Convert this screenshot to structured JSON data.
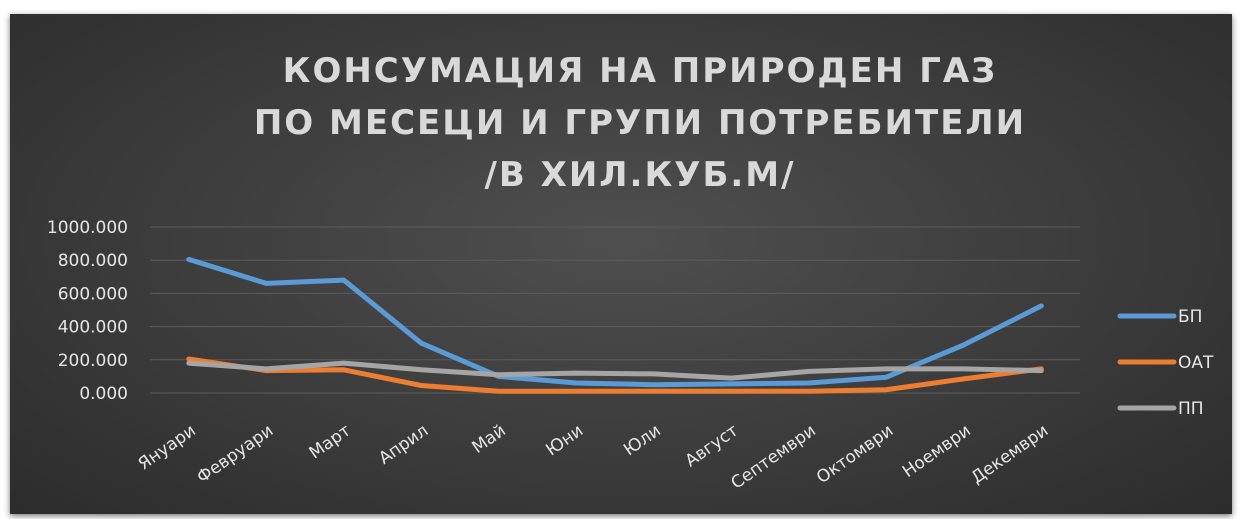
{
  "chart_data": {
    "type": "line",
    "title_lines": [
      "КОНСУМАЦИЯ НА ПРИРОДЕН ГАЗ",
      "ПО МЕСЕЦИ И ГРУПИ ПОТРЕБИТЕЛИ",
      "/В ХИЛ.КУБ.М/"
    ],
    "categories": [
      "Януари",
      "Февруари",
      "Март",
      "Април",
      "Май",
      "Юни",
      "Юли",
      "Август",
      "Септември",
      "Октомври",
      "Ноември",
      "Декември"
    ],
    "y_ticks": [
      "0.000",
      "200.000",
      "400.000",
      "600.000",
      "800.000",
      "1000.000"
    ],
    "ylim": [
      0,
      1000
    ],
    "grid": true,
    "legend_position": "right",
    "series": [
      {
        "name": "БП",
        "color": "#5b9bd5",
        "values": [
          805,
          660,
          680,
          300,
          100,
          60,
          50,
          55,
          60,
          95,
          290,
          525
        ]
      },
      {
        "name": "ОАТ",
        "color": "#ed7d31",
        "values": [
          205,
          135,
          140,
          45,
          10,
          10,
          10,
          10,
          10,
          20,
          85,
          145
        ]
      },
      {
        "name": "ПП",
        "color": "#a5a5a5",
        "values": [
          180,
          145,
          180,
          140,
          110,
          120,
          115,
          90,
          130,
          145,
          145,
          135
        ]
      }
    ]
  }
}
